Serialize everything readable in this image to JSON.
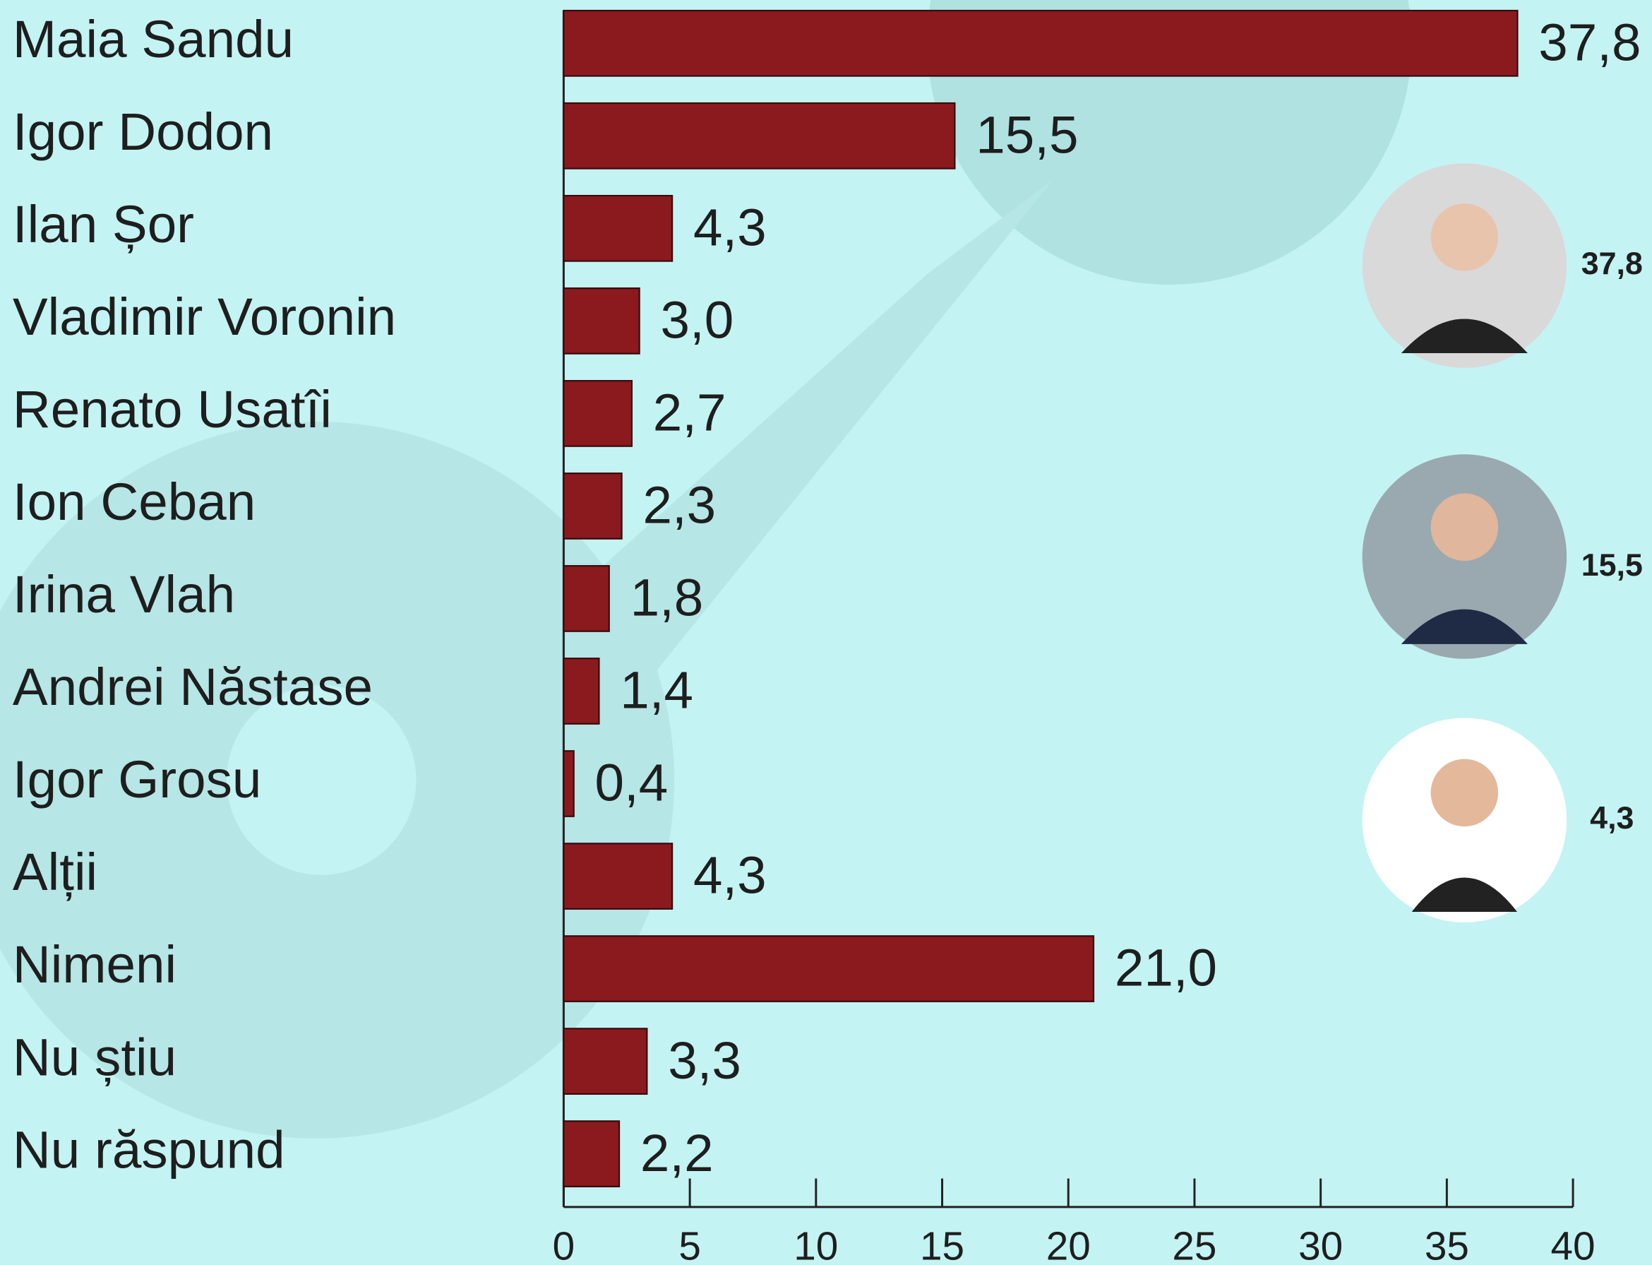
{
  "chart_data": {
    "type": "bar",
    "orientation": "horizontal",
    "categories": [
      "Maia Sandu",
      "Igor Dodon",
      "Ilan Șor",
      "Vladimir Voronin",
      "Renato Usatîi",
      "Ion Ceban",
      "Irina Vlah",
      "Andrei Năstase",
      "Igor Grosu",
      "Alții",
      "Nimeni",
      "Nu știu",
      "Nu răspund"
    ],
    "values": [
      37.8,
      15.5,
      4.3,
      3.0,
      2.7,
      2.3,
      1.8,
      1.4,
      0.4,
      4.3,
      21.0,
      3.3,
      2.2
    ],
    "value_labels": [
      "37,8",
      "15,5",
      "4,3",
      "3,0",
      "2,7",
      "2,3",
      "1,8",
      "1,4",
      "0,4",
      "4,3",
      "21,0",
      "3,3",
      "2,2"
    ],
    "color": "#8b1a1f",
    "xlim": [
      0,
      40
    ],
    "xticks": [
      0,
      5,
      10,
      15,
      20,
      25,
      30,
      35,
      40
    ],
    "highlight_labels": [
      "37,8",
      "15,5",
      "4,3"
    ]
  }
}
